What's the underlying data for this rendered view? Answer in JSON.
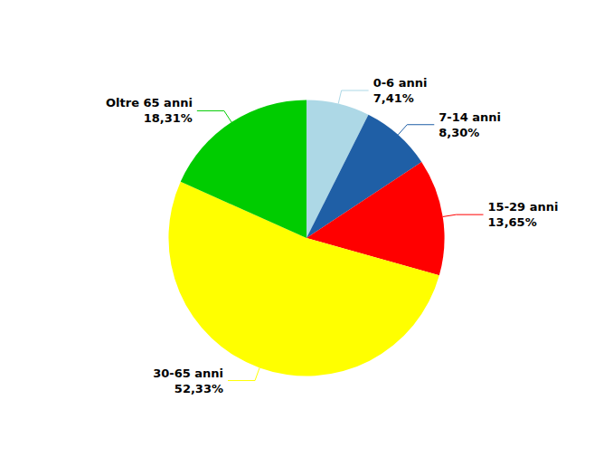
{
  "chart_data": {
    "type": "pie",
    "categories": [
      "0-6 anni\n7,41%",
      "7-14 anni\n8,30%",
      "15-29 anni\n13,65%",
      "30-65 anni\n52,33%",
      "Oltre 65 anni\n18,31%"
    ],
    "values": [
      7.41,
      8.3,
      13.65,
      52.33,
      18.31
    ],
    "colors": [
      "#add8e6",
      "#1f5fa6",
      "#ff0000",
      "#ffff00",
      "#00cc00"
    ],
    "legend": false
  }
}
